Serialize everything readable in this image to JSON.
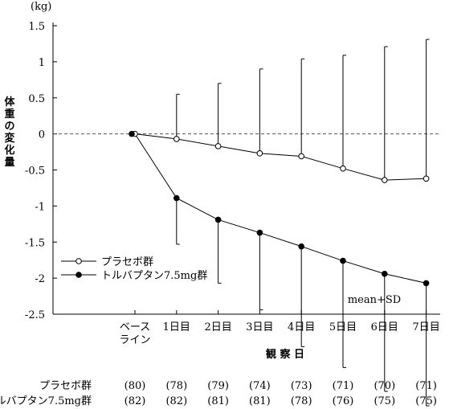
{
  "chart_data": {
    "type": "line",
    "unit_label": "(kg)",
    "ylabel": "体重の変化量",
    "xlabel": "観 察 日",
    "ylim": [
      -2.5,
      1.5
    ],
    "yticks": [
      "1.5",
      "1",
      "0.5",
      "0",
      "-0.5",
      "-1",
      "-1.5",
      "-2",
      "-2.5"
    ],
    "ytick_values": [
      1.5,
      1,
      0.5,
      0,
      -0.5,
      -1,
      -1.5,
      -2,
      -2.5
    ],
    "categories": [
      {
        "line1": "ベース",
        "line2": "ライン"
      },
      {
        "line1": "1日目",
        "line2": ""
      },
      {
        "line1": "2日目",
        "line2": ""
      },
      {
        "line1": "3日目",
        "line2": ""
      },
      {
        "line1": "4日目",
        "line2": ""
      },
      {
        "line1": "5日目",
        "line2": ""
      },
      {
        "line1": "6日目",
        "line2": ""
      },
      {
        "line1": "7日目",
        "line2": ""
      }
    ],
    "series": [
      {
        "name": "プラセボ群",
        "marker": "open-circle",
        "values": [
          0,
          -0.07,
          -0.17,
          -0.27,
          -0.31,
          -0.48,
          -0.64,
          -0.62
        ],
        "sd": [
          0,
          0.62,
          0.87,
          1.17,
          1.35,
          1.57,
          1.85,
          1.93
        ],
        "n": [
          "(80)",
          "(78)",
          "(79)",
          "(74)",
          "(73)",
          "(71)",
          "(70)",
          "(71)"
        ]
      },
      {
        "name": "トルバプタン7.5mg群",
        "marker": "filled-circle",
        "values": [
          0,
          -0.89,
          -1.19,
          -1.37,
          -1.56,
          -1.76,
          -1.94,
          -2.07
        ],
        "sd": [
          0,
          0.64,
          0.88,
          1.07,
          1.39,
          1.48,
          1.63,
          1.7
        ],
        "n": [
          "(82)",
          "(82)",
          "(81)",
          "(81)",
          "(78)",
          "(76)",
          "(75)",
          "(75)"
        ]
      }
    ],
    "reference_line": 0,
    "annotation": "mean+SD",
    "legend_position": "lower-left"
  }
}
